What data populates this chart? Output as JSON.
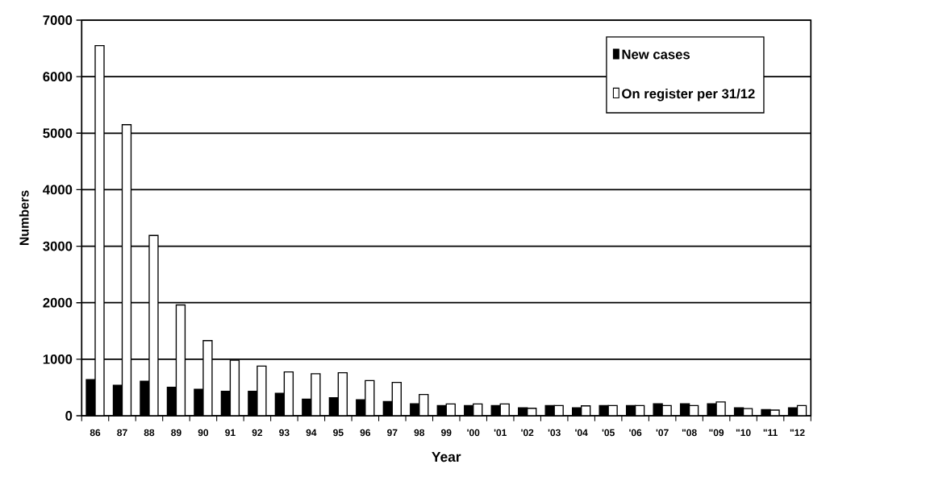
{
  "chart_data": {
    "type": "bar",
    "xlabel": "Year",
    "ylabel": "Numbers",
    "categories": [
      "86",
      "87",
      "88",
      "89",
      "90",
      "91",
      "92",
      "93",
      "94",
      "95",
      "96",
      "97",
      "98",
      "99",
      "'00",
      "'01",
      "'02",
      "'03",
      "'04",
      "'05",
      "'06",
      "'07",
      "\"08",
      "\"09",
      "\"10",
      "\"11",
      "\"12"
    ],
    "series": [
      {
        "name": "New cases",
        "color": "#000000",
        "values": [
          640,
          540,
          610,
          505,
          467,
          432,
          432,
          398,
          295,
          320,
          283,
          250,
          212,
          180,
          180,
          180,
          141,
          180,
          141,
          180,
          180,
          212,
          212,
          212,
          141,
          108,
          141
        ]
      },
      {
        "name": "On register per 31/12",
        "color": "#ffffff",
        "values": [
          6550,
          5150,
          3190,
          1960,
          1330,
          982,
          879,
          776,
          742,
          760,
          623,
          590,
          377,
          208,
          208,
          208,
          132,
          180,
          175,
          180,
          180,
          180,
          180,
          245,
          127,
          100,
          180
        ]
      }
    ],
    "ylim": [
      0,
      7000
    ],
    "yticks": [
      0,
      1000,
      2000,
      3000,
      4000,
      5000,
      6000,
      7000
    ],
    "grid": "y",
    "legend": "top right"
  }
}
